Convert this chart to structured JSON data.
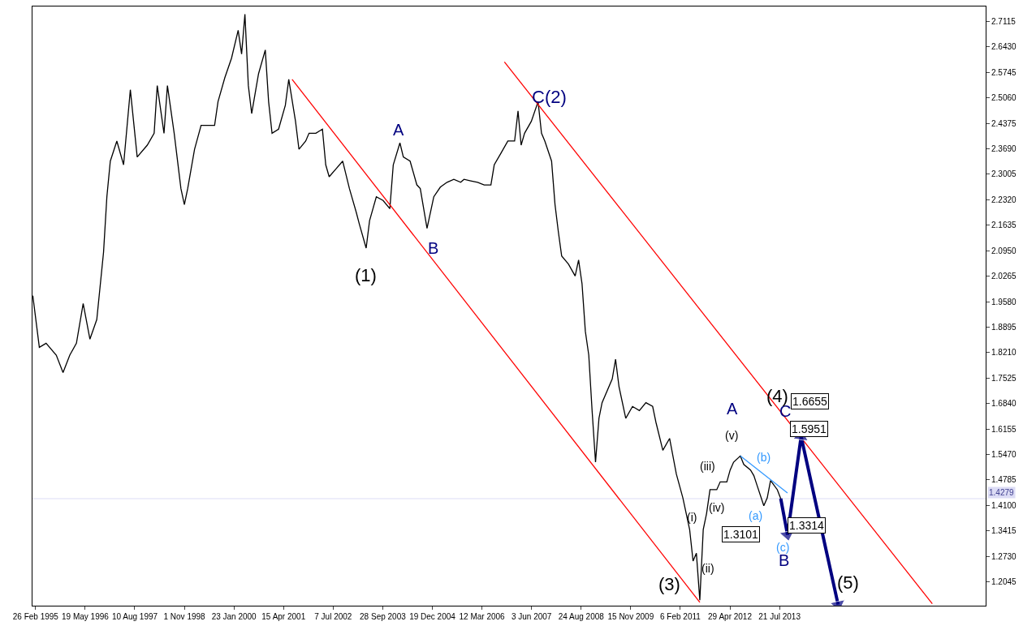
{
  "chart_data": {
    "type": "line",
    "xlim": [
      "1995-01-29",
      "2018-08-26"
    ],
    "ylim": [
      1.14,
      2.752
    ],
    "xticks": [
      {
        "value": "1995-02-26",
        "label": "26 Feb 1995"
      },
      {
        "value": "1996-05-19",
        "label": "19 May 1996"
      },
      {
        "value": "1997-08-10",
        "label": "10 Aug 1997"
      },
      {
        "value": "1998-11-01",
        "label": "1 Nov 1998"
      },
      {
        "value": "2000-01-23",
        "label": "23 Jan 2000"
      },
      {
        "value": "2001-04-15",
        "label": "15 Apr 2001"
      },
      {
        "value": "2002-07-07",
        "label": "7 Jul 2002"
      },
      {
        "value": "2003-09-28",
        "label": "28 Sep 2003"
      },
      {
        "value": "2004-12-19",
        "label": "19 Dec 2004"
      },
      {
        "value": "2006-03-12",
        "label": "12 Mar 2006"
      },
      {
        "value": "2007-06-03",
        "label": "3 Jun 2007"
      },
      {
        "value": "2008-08-24",
        "label": "24 Aug 2008"
      },
      {
        "value": "2009-11-15",
        "label": "15 Nov 2009"
      },
      {
        "value": "2011-02-06",
        "label": "6 Feb 2011"
      },
      {
        "value": "2012-04-29",
        "label": "29 Apr 2012"
      },
      {
        "value": "2013-07-21",
        "label": "21 Jul 2013"
      }
    ],
    "yticks": [
      {
        "value": 2.7115,
        "label": "2.7115"
      },
      {
        "value": 2.643,
        "label": "2.6430"
      },
      {
        "value": 2.5745,
        "label": "2.5745"
      },
      {
        "value": 2.506,
        "label": "2.5060"
      },
      {
        "value": 2.4375,
        "label": "2.4375"
      },
      {
        "value": 2.369,
        "label": "2.3690"
      },
      {
        "value": 2.3005,
        "label": "2.3005"
      },
      {
        "value": 2.232,
        "label": "2.2320"
      },
      {
        "value": 2.1635,
        "label": "2.1635"
      },
      {
        "value": 2.095,
        "label": "2.0950"
      },
      {
        "value": 2.0265,
        "label": "2.0265"
      },
      {
        "value": 1.958,
        "label": "1.9580"
      },
      {
        "value": 1.8895,
        "label": "1.8895"
      },
      {
        "value": 1.821,
        "label": "1.8210"
      },
      {
        "value": 1.7525,
        "label": "1.7525"
      },
      {
        "value": 1.684,
        "label": "1.6840"
      },
      {
        "value": 1.6155,
        "label": "1.6155"
      },
      {
        "value": 1.547,
        "label": "1.5470"
      },
      {
        "value": 1.4785,
        "label": "1.4785"
      },
      {
        "value": 1.41,
        "label": "1.4100"
      },
      {
        "value": 1.3415,
        "label": "1.3415"
      },
      {
        "value": 1.273,
        "label": "1.2730"
      },
      {
        "value": 1.2045,
        "label": "1.2045"
      }
    ],
    "grid": false,
    "series": [
      {
        "color": "#000000",
        "x": [
          "1995-02",
          "1995-04",
          "1995-06",
          "1995-09",
          "1995-11",
          "1996-01",
          "1996-03",
          "1996-05",
          "1996-07",
          "1996-09",
          "1996-11",
          "1996-12",
          "1997-01",
          "1997-03",
          "1997-05",
          "1997-07",
          "1997-09",
          "1997-12",
          "1998-02",
          "1998-03",
          "1998-05",
          "1998-06",
          "1998-08",
          "1998-10",
          "1998-11",
          "1998-12",
          "1999-02",
          "1999-04",
          "1999-06",
          "1999-08",
          "1999-09",
          "1999-11",
          "2000-01",
          "2000-03",
          "2000-04",
          "2000-05",
          "2000-06",
          "2000-07",
          "2000-09",
          "2000-11",
          "2000-12",
          "2001-01",
          "2001-03",
          "2001-05",
          "2001-06",
          "2001-08",
          "2001-09",
          "2001-11",
          "2001-12",
          "2002-02",
          "2002-04",
          "2002-05",
          "2002-06",
          "2002-08",
          "2002-10",
          "2002-12",
          "2003-02",
          "2003-03",
          "2003-05",
          "2003-06",
          "2003-08",
          "2003-10",
          "2003-12",
          "2004-01",
          "2004-03",
          "2004-04",
          "2004-06",
          "2004-08",
          "2004-09",
          "2004-11",
          "2005-01",
          "2005-03",
          "2005-05",
          "2005-07",
          "2005-09",
          "2005-10",
          "2005-12",
          "2006-02",
          "2006-04",
          "2006-06",
          "2006-07",
          "2006-09",
          "2006-11",
          "2007-01",
          "2007-02",
          "2007-03",
          "2007-04",
          "2007-06",
          "2007-08",
          "2007-09",
          "2007-10",
          "2007-12",
          "2008-01",
          "2008-02",
          "2008-03",
          "2008-05",
          "2008-07",
          "2008-08",
          "2008-09",
          "2008-10",
          "2008-11",
          "2008-12",
          "2009-01",
          "2009-02",
          "2009-03",
          "2009-06",
          "2009-07",
          "2009-08",
          "2009-10",
          "2009-12",
          "2010-02",
          "2010-04",
          "2010-06",
          "2010-07",
          "2010-09",
          "2010-11",
          "2011-01",
          "2011-03",
          "2011-05",
          "2011-06",
          "2011-07",
          "2011-08",
          "2011-09",
          "2011-10",
          "2011-11",
          "2012-01",
          "2012-02",
          "2012-04",
          "2012-05",
          "2012-06",
          "2012-08",
          "2012-09",
          "2012-11",
          "2012-12",
          "2013-01",
          "2013-03",
          "2013-04",
          "2013-05",
          "2013-07",
          "2013-08"
        ],
        "values": [
          1.974,
          1.835,
          1.846,
          1.814,
          1.767,
          1.814,
          1.846,
          1.953,
          1.857,
          1.91,
          2.091,
          2.24,
          2.336,
          2.39,
          2.326,
          2.528,
          2.347,
          2.379,
          2.411,
          2.539,
          2.411,
          2.539,
          2.411,
          2.262,
          2.219,
          2.262,
          2.368,
          2.432,
          2.432,
          2.432,
          2.496,
          2.56,
          2.613,
          2.688,
          2.624,
          2.731,
          2.539,
          2.464,
          2.571,
          2.635,
          2.496,
          2.411,
          2.422,
          2.486,
          2.556,
          2.443,
          2.368,
          2.39,
          2.411,
          2.411,
          2.422,
          2.326,
          2.294,
          2.315,
          2.336,
          2.262,
          2.198,
          2.166,
          2.102,
          2.176,
          2.24,
          2.23,
          2.208,
          2.326,
          2.385,
          2.347,
          2.336,
          2.272,
          2.262,
          2.155,
          2.24,
          2.266,
          2.279,
          2.287,
          2.279,
          2.287,
          2.283,
          2.279,
          2.272,
          2.272,
          2.326,
          2.358,
          2.39,
          2.39,
          2.471,
          2.379,
          2.411,
          2.443,
          2.496,
          2.411,
          2.39,
          2.336,
          2.219,
          2.144,
          2.081,
          2.059,
          2.027,
          2.07,
          2.006,
          1.878,
          1.814,
          1.665,
          1.526,
          1.644,
          1.686,
          1.75,
          1.803,
          1.729,
          1.644,
          1.676,
          1.665,
          1.686,
          1.676,
          1.633,
          1.558,
          1.59,
          1.494,
          1.43,
          1.345,
          1.26,
          1.281,
          1.155,
          1.345,
          1.388,
          1.452,
          1.452,
          1.473,
          1.473,
          1.505,
          1.526,
          1.543,
          1.52,
          1.505,
          1.49,
          1.462,
          1.409,
          1.43,
          1.477,
          1.452,
          1.428
        ]
      },
      {
        "color": "#ff0000",
        "x": [
          "2001-07",
          "2011-08"
        ],
        "values": [
          2.556,
          1.149
        ]
      },
      {
        "color": "#ff0000",
        "x": [
          "2006-10",
          "2017-05"
        ],
        "values": [
          2.603,
          1.145
        ]
      },
      {
        "color": "#3399ff",
        "x": [
          "2012-08",
          "2013-10"
        ],
        "values": [
          1.543,
          1.443
        ]
      },
      {
        "color": "#000080",
        "marker": "triangle",
        "x": [
          "2013-08",
          "2013-10",
          "2014-02",
          "2015-01"
        ],
        "values": [
          1.428,
          1.331,
          1.595,
          1.143
        ]
      }
    ],
    "ref_lines": [
      {
        "axis": "y",
        "value": 1.4279,
        "label": "1.4279",
        "color": "#dcdcf5"
      }
    ],
    "annotations": [
      "(1)",
      "A",
      "B",
      "C(2)",
      "(3)",
      "(i)",
      "(ii)",
      "(iii)",
      "(iv)",
      "(v)",
      "A",
      "(a)",
      "(b)",
      "(c)",
      "B",
      "C",
      "(4)",
      "(5)",
      "1.6655",
      "1.5951",
      "1.3314",
      "1.3101"
    ]
  }
}
